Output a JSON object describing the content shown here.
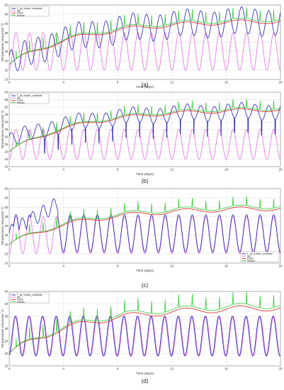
{
  "chart_data": [
    {
      "type": "line",
      "caption": "(a)",
      "xlabel": "Time (days)",
      "ylabel": "Temperature response °C",
      "xlim": [
        0,
        20
      ],
      "ylim": [
        10,
        50
      ],
      "xticks": [
        0,
        4,
        8,
        12,
        16,
        20
      ],
      "yticks": [
        10,
        15,
        20,
        25,
        30,
        35,
        40,
        45,
        50
      ],
      "grid": true,
      "legend_position": "top-left",
      "series": [
        {
          "name": "T_air_inside_container",
          "color": "#1f1fb4",
          "start": 18,
          "end": 41,
          "amplitude": 7,
          "phase": 2.3
        },
        {
          "name": "Tair",
          "color": "#e57ce5",
          "mean": 25,
          "amplitude": 10,
          "phase": 0
        },
        {
          "name": "Ttank",
          "color": "#d62020",
          "start": 18,
          "end": 41
        },
        {
          "name": "Tshack",
          "color": "#2ecc2e",
          "start": 18,
          "end": 42,
          "spike": 6
        }
      ]
    },
    {
      "type": "line",
      "caption": "(b)",
      "xlabel": "Time (days)",
      "ylabel": "Temperature response °C",
      "xlim": [
        0,
        20
      ],
      "ylim": [
        10,
        60
      ],
      "xticks": [
        0,
        4,
        8,
        12,
        16,
        20
      ],
      "yticks": [
        10,
        15,
        20,
        25,
        30,
        35,
        40,
        45,
        50,
        55,
        60
      ],
      "grid": true,
      "legend_position": "top-left",
      "series": [
        {
          "name": "T_air_inside_container",
          "color": "#1f1fb4",
          "start": 27,
          "end": 47,
          "amplitude": 5,
          "phase": 2.3,
          "drop": 10
        },
        {
          "name": "Tair",
          "color": "#e57ce5",
          "mean": 25,
          "amplitude": 10,
          "phase": 0
        },
        {
          "name": "Ttank",
          "color": "#d62020",
          "start": 20,
          "end": 48
        },
        {
          "name": "Tshack",
          "color": "#2ecc2e",
          "start": 20,
          "end": 49,
          "spike": 6
        }
      ]
    },
    {
      "type": "line",
      "caption": "(c)",
      "xlabel": "Time (days)",
      "ylabel": "Temperature response °C",
      "xlim": [
        0,
        20
      ],
      "ylim": [
        10,
        50
      ],
      "xticks": [
        0,
        4,
        8,
        12,
        16,
        20
      ],
      "yticks": [
        10,
        15,
        20,
        25,
        30,
        35,
        40,
        45,
        50
      ],
      "grid": true,
      "legend_position": "bottom-right",
      "series": [
        {
          "name": "T_air_inside_container",
          "color": "#1f1fb4",
          "mean": 26,
          "amplitude": 10,
          "phase": 0,
          "early_high": 42
        },
        {
          "name": "Tair",
          "color": "#e57ce5",
          "mean": 25,
          "amplitude": 10,
          "phase": 0
        },
        {
          "name": "Ttank",
          "color": "#d62020",
          "start": 20,
          "end": 39
        },
        {
          "name": "Tshack",
          "color": "#2ecc2e",
          "start": 20,
          "end": 40,
          "spike": 5
        }
      ]
    },
    {
      "type": "line",
      "caption": "(d)",
      "xlabel": "Time (days)",
      "ylabel": "Temperature response °C",
      "xlim": [
        0,
        20
      ],
      "ylim": [
        15,
        45
      ],
      "xticks": [
        0,
        4,
        8,
        12,
        16,
        20
      ],
      "yticks": [
        15,
        20,
        25,
        30,
        35,
        40,
        45
      ],
      "grid": true,
      "legend_position": "top-left",
      "series": [
        {
          "name": "T_air_inside_container",
          "color": "#1f1fb4",
          "mean": 27,
          "amplitude": 8,
          "phase": 0.3
        },
        {
          "name": "Tair",
          "color": "#e57ce5",
          "mean": 27,
          "amplitude": 8,
          "phase": 0
        },
        {
          "name": "Ttank",
          "color": "#d62020",
          "start": 20,
          "end": 38
        },
        {
          "name": "Tshack",
          "color": "#2ecc2e",
          "start": 20,
          "end": 39,
          "spike": 5
        }
      ]
    }
  ]
}
